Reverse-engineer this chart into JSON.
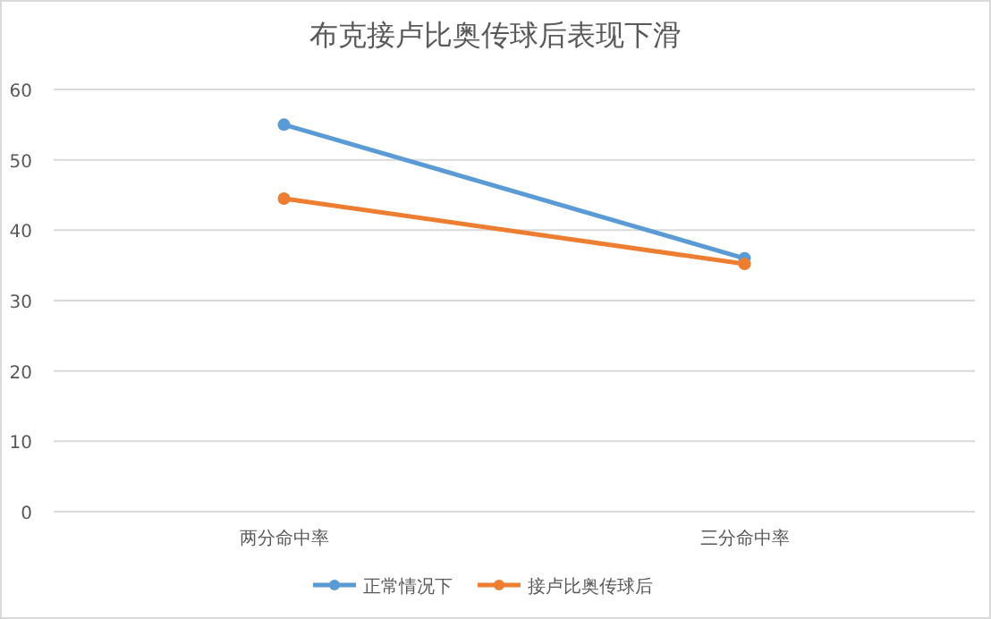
{
  "chart_data": {
    "type": "line",
    "title": "布克接卢比奥传球后表现下滑",
    "categories": [
      "两分命中率",
      "三分命中率"
    ],
    "series": [
      {
        "name": "正常情况下",
        "color": "#5b9bd5",
        "values": [
          55,
          36
        ]
      },
      {
        "name": "接卢比奥传球后",
        "color": "#ed7d31",
        "values": [
          44.5,
          35.2
        ]
      }
    ],
    "ylim": [
      0,
      60
    ],
    "yticks": [
      0,
      10,
      20,
      30,
      40,
      50,
      60
    ],
    "grid": "y",
    "legend": "bottom",
    "marker": "circle",
    "line_style": "solid"
  }
}
